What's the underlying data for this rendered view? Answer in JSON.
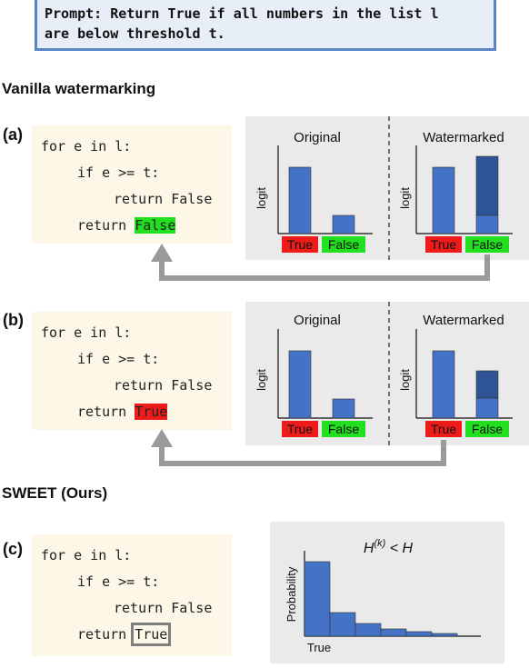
{
  "prompt": {
    "line1": "Prompt: Return True if all numbers in the list l",
    "line2": "are below threshold t."
  },
  "sections": {
    "vanilla": "Vanilla watermarking",
    "sweet": "SWEET (Ours)"
  },
  "panels": {
    "a": {
      "label": "(a)",
      "code": [
        "for e in l:",
        "if e >= t:",
        "return False",
        "return "
      ],
      "final_token": "False",
      "charts": {
        "original_title": "Original",
        "watermarked_title": "Watermarked",
        "ylabel": "logit",
        "categories": [
          "True",
          "False"
        ]
      }
    },
    "b": {
      "label": "(b)",
      "code": [
        "for e in l:",
        "if e >= t:",
        "return False",
        "return "
      ],
      "final_token": "True",
      "charts": {
        "original_title": "Original",
        "watermarked_title": "Watermarked",
        "ylabel": "logit",
        "categories": [
          "True",
          "False"
        ]
      }
    },
    "c": {
      "label": "(c)",
      "code": [
        "for e in l:",
        "if e >= t:",
        "return False",
        "return "
      ],
      "final_token": "True",
      "chart": {
        "title": "H(k) < H",
        "ylabel": "Probability",
        "xlabel": "True"
      }
    }
  },
  "colors": {
    "bar": "#4472c4",
    "bar_dark": "#2f5496",
    "true_label": "#ee1b1b",
    "false_label": "#22e020",
    "arrow": "#9a9a9a",
    "prompt_border": "#5b84c4"
  },
  "chart_data": [
    {
      "type": "bar",
      "title": "Original",
      "ylabel": "logit",
      "categories": [
        "True",
        "False"
      ],
      "values": [
        1.0,
        0.28
      ]
    },
    {
      "type": "bar",
      "title": "Watermarked",
      "ylabel": "logit",
      "categories": [
        "True",
        "False"
      ],
      "series": [
        {
          "values": [
            1.0,
            0.28
          ]
        },
        {
          "values": [
            0,
            0.8
          ]
        }
      ]
    },
    {
      "type": "bar",
      "title": "Original",
      "ylabel": "logit",
      "categories": [
        "True",
        "False"
      ],
      "values": [
        1.0,
        0.27
      ]
    },
    {
      "type": "bar",
      "title": "Watermarked",
      "ylabel": "logit",
      "categories": [
        "True",
        "False"
      ],
      "series": [
        {
          "values": [
            1.0,
            0.4
          ]
        },
        {
          "values": [
            0,
            0.45
          ]
        }
      ]
    },
    {
      "type": "bar",
      "title": "H(k) < H",
      "ylabel": "Probability",
      "categories": [
        "True",
        "",
        "",
        "",
        ""
      ],
      "values": [
        1.0,
        0.3,
        0.15,
        0.08,
        0.05
      ]
    }
  ]
}
